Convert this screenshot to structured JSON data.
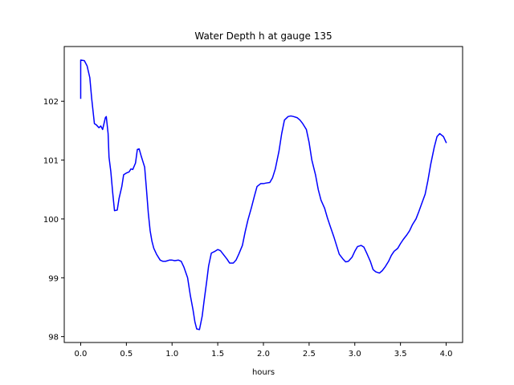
{
  "chart_data": {
    "type": "line",
    "title": "Water Depth h at gauge 135",
    "xlabel": "hours",
    "ylabel": "",
    "xlim": [
      -0.18,
      4.18
    ],
    "ylim": [
      97.9,
      102.93
    ],
    "xticks": [
      0.0,
      0.5,
      1.0,
      1.5,
      2.0,
      2.5,
      3.0,
      3.5,
      4.0
    ],
    "xtick_labels": [
      "0.0",
      "0.5",
      "1.0",
      "1.5",
      "2.0",
      "2.5",
      "3.0",
      "3.5",
      "4.0"
    ],
    "yticks": [
      98,
      99,
      100,
      101,
      102
    ],
    "ytick_labels": [
      "98",
      "99",
      "100",
      "101",
      "102"
    ],
    "grid": false,
    "series": [
      {
        "color": "#0000ff",
        "x": [
          0.0,
          0.0,
          0.04,
          0.07,
          0.1,
          0.12,
          0.15,
          0.17,
          0.2,
          0.22,
          0.24,
          0.27,
          0.28,
          0.3,
          0.31,
          0.33,
          0.35,
          0.37,
          0.4,
          0.42,
          0.45,
          0.47,
          0.5,
          0.53,
          0.55,
          0.57,
          0.6,
          0.62,
          0.64,
          0.66,
          0.68,
          0.7,
          0.72,
          0.74,
          0.76,
          0.78,
          0.8,
          0.83,
          0.87,
          0.9,
          0.93,
          0.97,
          1.0,
          1.03,
          1.07,
          1.1,
          1.13,
          1.17,
          1.2,
          1.23,
          1.25,
          1.27,
          1.3,
          1.33,
          1.35,
          1.38,
          1.4,
          1.43,
          1.47,
          1.5,
          1.53,
          1.57,
          1.6,
          1.63,
          1.67,
          1.7,
          1.73,
          1.77,
          1.8,
          1.83,
          1.87,
          1.9,
          1.93,
          1.97,
          2.0,
          2.03,
          2.07,
          2.1,
          2.13,
          2.17,
          2.2,
          2.23,
          2.27,
          2.3,
          2.33,
          2.37,
          2.4,
          2.43,
          2.47,
          2.5,
          2.53,
          2.57,
          2.6,
          2.63,
          2.67,
          2.7,
          2.73,
          2.77,
          2.8,
          2.83,
          2.87,
          2.9,
          2.93,
          2.97,
          3.0,
          3.03,
          3.07,
          3.1,
          3.13,
          3.17,
          3.2,
          3.23,
          3.27,
          3.3,
          3.33,
          3.37,
          3.4,
          3.43,
          3.47,
          3.5,
          3.53,
          3.57,
          3.6,
          3.63,
          3.67,
          3.7,
          3.73,
          3.77,
          3.8,
          3.83,
          3.87,
          3.9,
          3.93,
          3.97,
          4.0
        ],
        "y": [
          102.05,
          102.7,
          102.69,
          102.6,
          102.4,
          102.05,
          101.62,
          101.6,
          101.55,
          101.58,
          101.52,
          101.72,
          101.74,
          101.45,
          101.05,
          100.8,
          100.45,
          100.14,
          100.15,
          100.35,
          100.55,
          100.75,
          100.78,
          100.8,
          100.85,
          100.84,
          100.95,
          101.18,
          101.19,
          101.08,
          100.98,
          100.88,
          100.5,
          100.1,
          99.8,
          99.62,
          99.5,
          99.4,
          99.3,
          99.28,
          99.28,
          99.3,
          99.3,
          99.29,
          99.3,
          99.28,
          99.18,
          99.0,
          98.7,
          98.45,
          98.25,
          98.13,
          98.12,
          98.35,
          98.6,
          98.95,
          99.2,
          99.42,
          99.45,
          99.48,
          99.46,
          99.38,
          99.32,
          99.25,
          99.25,
          99.3,
          99.4,
          99.55,
          99.78,
          99.98,
          100.2,
          100.38,
          100.55,
          100.6,
          100.6,
          100.61,
          100.62,
          100.7,
          100.85,
          101.15,
          101.45,
          101.68,
          101.74,
          101.75,
          101.74,
          101.72,
          101.68,
          101.62,
          101.52,
          101.3,
          101.0,
          100.75,
          100.5,
          100.32,
          100.18,
          100.02,
          99.88,
          99.7,
          99.55,
          99.4,
          99.32,
          99.27,
          99.28,
          99.35,
          99.45,
          99.53,
          99.55,
          99.52,
          99.42,
          99.28,
          99.14,
          99.1,
          99.08,
          99.12,
          99.18,
          99.28,
          99.38,
          99.45,
          99.5,
          99.58,
          99.65,
          99.73,
          99.8,
          99.9,
          100.0,
          100.12,
          100.25,
          100.42,
          100.65,
          100.92,
          101.22,
          101.4,
          101.45,
          101.4,
          101.3
        ]
      }
    ]
  }
}
